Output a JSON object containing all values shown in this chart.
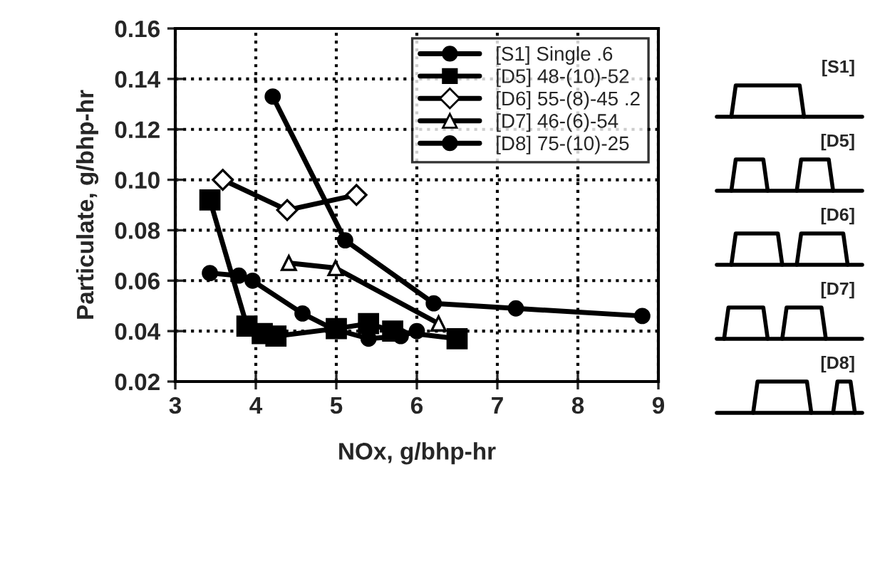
{
  "chart_data": {
    "type": "line",
    "xlabel": "NOx, g/bhp-hr",
    "ylabel": "Particulate, g/bhp-hr",
    "xlim": [
      3,
      9
    ],
    "xticks": [
      3,
      4,
      5,
      6,
      7,
      8,
      9
    ],
    "ylim": [
      0.02,
      0.16
    ],
    "yticks": [
      {
        "value": 0.02,
        "label": "0.02"
      },
      {
        "value": 0.04,
        "label": "0.04"
      },
      {
        "value": 0.06,
        "label": "0.06"
      },
      {
        "value": 0.08,
        "label": "0.08"
      },
      {
        "value": 0.1,
        "label": "0.10"
      },
      {
        "value": 0.12,
        "label": "0.12"
      },
      {
        "value": 0.14,
        "label": "0.14"
      },
      {
        "value": 0.16,
        "label": "0.16"
      }
    ],
    "grid": true,
    "legend": "top right",
    "line_style": "solid",
    "series": [
      {
        "name": "[S1] Single .6",
        "color": "#000000",
        "marker": "circle",
        "x": [
          4.21,
          5.11,
          6.21,
          7.23,
          8.8
        ],
        "values": [
          0.133,
          0.076,
          0.051,
          0.049,
          0.046
        ]
      },
      {
        "name": "[D5] 48-(10)-52",
        "color": "#000000",
        "marker": "square",
        "x": [
          3.43,
          3.89,
          4.08,
          4.25,
          5.0,
          5.4,
          5.7,
          6.5
        ],
        "values": [
          0.092,
          0.042,
          0.039,
          0.038,
          0.041,
          0.043,
          0.04,
          0.037
        ]
      },
      {
        "name": "[D6] 55-(8)-45 .2",
        "color": "#000000",
        "marker": "diamond",
        "x": [
          3.59,
          4.39,
          5.25
        ],
        "values": [
          0.1,
          0.088,
          0.094
        ]
      },
      {
        "name": "[D7] 46-(6)-54",
        "color": "#000000",
        "marker": "triangle",
        "x": [
          4.41,
          4.99,
          6.27
        ],
        "values": [
          0.067,
          0.065,
          0.043
        ]
      },
      {
        "name": "[D8] 75-(10)-25",
        "color": "#000000",
        "marker": "circle",
        "x": [
          3.43,
          3.79,
          3.96,
          4.58,
          4.95,
          5.4,
          5.8,
          6.0
        ],
        "values": [
          0.063,
          0.062,
          0.06,
          0.047,
          0.041,
          0.037,
          0.038,
          0.04
        ]
      }
    ],
    "annotations": [
      "[S1]",
      "[D5]",
      "[D6]",
      "[D7]",
      "[D8]"
    ]
  }
}
